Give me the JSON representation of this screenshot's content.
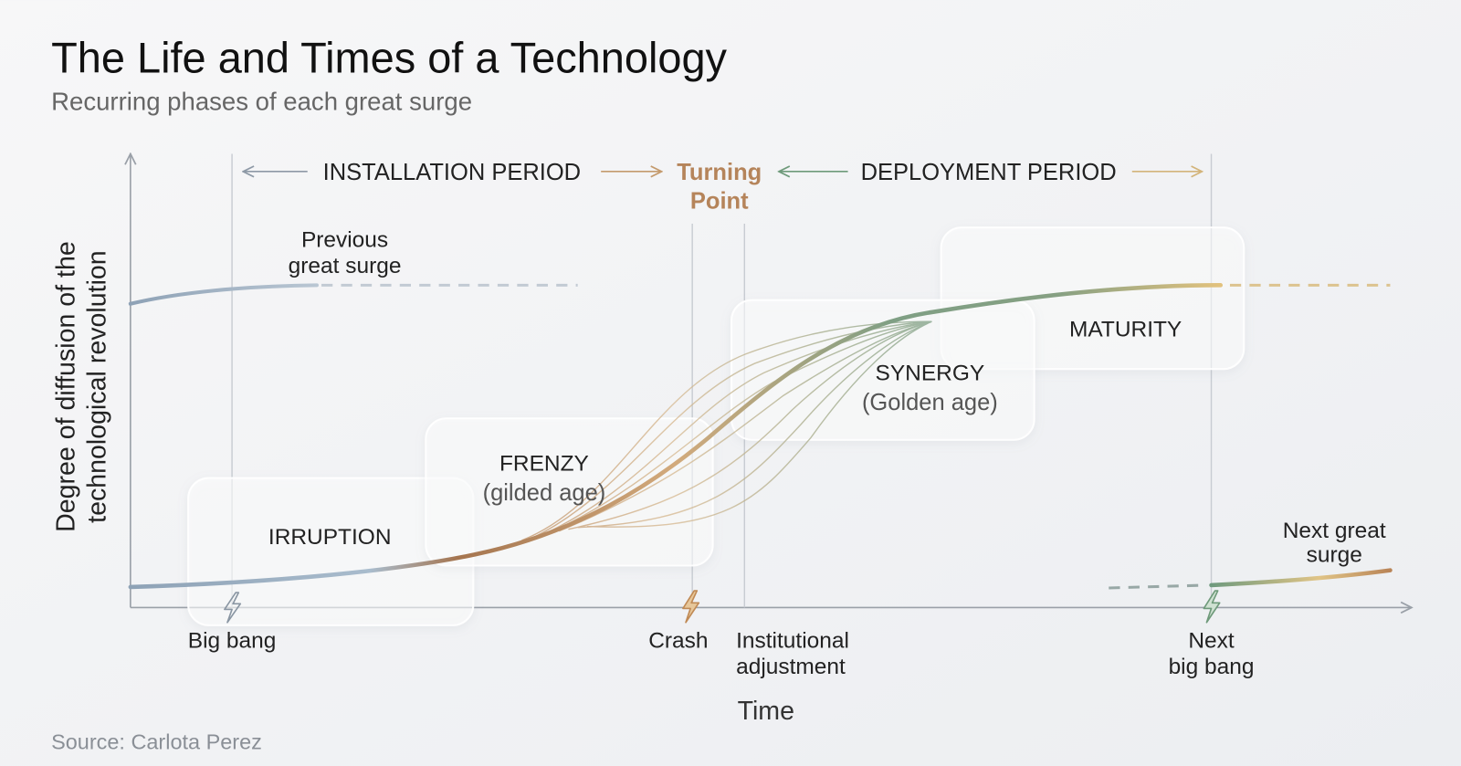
{
  "header": {
    "title": "The Life and Times of a Technology",
    "subtitle": "Recurring phases of each great surge"
  },
  "periods": {
    "installation": "INSTALLATION PERIOD",
    "turning_point": {
      "lines": [
        "Turning",
        "Point"
      ]
    },
    "deployment": "DEPLOYMENT PERIOD"
  },
  "surges": {
    "previous": {
      "lines": [
        "Previous",
        "great surge"
      ]
    },
    "next": {
      "lines": [
        "Next great",
        "surge"
      ]
    }
  },
  "phases": [
    {
      "label": "IRRUPTION"
    },
    {
      "label": "FRENZY",
      "sublabel": "(gilded age)"
    },
    {
      "label": "SYNERGY",
      "sublabel": "(Golden age)"
    },
    {
      "label": "MATURITY"
    }
  ],
  "events": [
    {
      "lines": [
        "Big bang"
      ]
    },
    {
      "lines": [
        "Crash"
      ]
    },
    {
      "lines": [
        "Institutional",
        "adjustment"
      ]
    },
    {
      "lines": [
        "Next",
        "big bang"
      ]
    }
  ],
  "axes": {
    "y": {
      "lines": [
        "Degree of diffusion of the",
        "technological revolution"
      ]
    },
    "x": "Time"
  },
  "source": "Source: Carlota Perez"
}
